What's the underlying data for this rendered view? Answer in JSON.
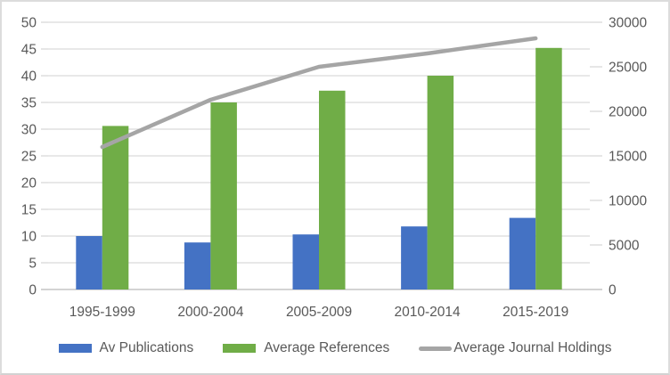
{
  "chart_data": {
    "type": "bar+line combo",
    "title": "",
    "categories": [
      "1995-1999",
      "2000-2004",
      "2005-2009",
      "2010-2014",
      "2015-2019"
    ],
    "series": [
      {
        "name": "Av Publications",
        "type": "bar",
        "axis": "left",
        "color": "#4472c4",
        "values": [
          10.0,
          8.8,
          10.3,
          11.8,
          13.4
        ]
      },
      {
        "name": "Average References",
        "type": "bar",
        "axis": "left",
        "color": "#70ad47",
        "values": [
          30.6,
          35.0,
          37.2,
          40.0,
          45.2
        ]
      },
      {
        "name": "Average Journal Holdings",
        "type": "line",
        "axis": "right",
        "color": "#a5a5a5",
        "values": [
          16000,
          21300,
          25000,
          26500,
          28200
        ]
      }
    ],
    "axes": {
      "left": {
        "min": 0,
        "max": 50,
        "step": 5,
        "tick_labels": [
          "0",
          "5",
          "10",
          "15",
          "20",
          "25",
          "30",
          "35",
          "40",
          "45",
          "50"
        ]
      },
      "right": {
        "min": 0,
        "max": 30000,
        "step": 5000,
        "tick_labels": [
          "0",
          "5000",
          "10000",
          "15000",
          "20000",
          "25000",
          "30000"
        ]
      }
    },
    "grid": true,
    "legend_position": "bottom"
  },
  "style": {
    "gridline_color": "#d9d9d9",
    "axis_line_color": "#bfbfbf",
    "label_color": "#595959",
    "background": "#ffffff"
  }
}
